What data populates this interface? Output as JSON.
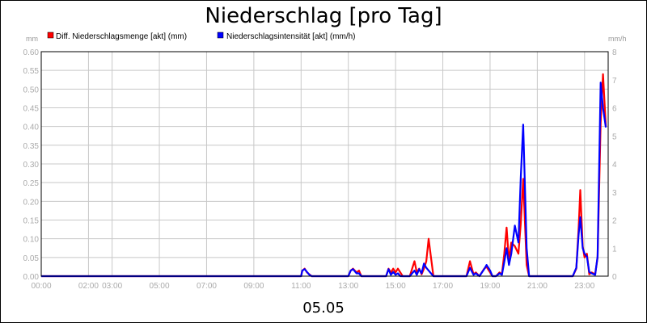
{
  "chart_data": {
    "type": "line",
    "title": "Niederschlag [pro Tag]",
    "date_label": "05.05",
    "y_left": {
      "unit": "mm",
      "min": 0,
      "max": 0.6,
      "ticks": [
        "0.00",
        "0.05",
        "0.10",
        "0.15",
        "0.20",
        "0.25",
        "0.30",
        "0.35",
        "0.40",
        "0.45",
        "0.50",
        "0.55",
        "0.60"
      ]
    },
    "y_right": {
      "unit": "mm/h",
      "min": 0,
      "max": 8,
      "ticks": [
        "0",
        "1",
        "2",
        "3",
        "4",
        "5",
        "6",
        "7",
        "8"
      ]
    },
    "x_range_hours": [
      0,
      24
    ],
    "x_ticks": [
      {
        "label": "00:00",
        "hour": 0
      },
      {
        "label": "02:00",
        "hour": 2
      },
      {
        "label": "03:00",
        "hour": 3
      },
      {
        "label": "05:00",
        "hour": 5
      },
      {
        "label": "07:00",
        "hour": 7
      },
      {
        "label": "09:00",
        "hour": 9
      },
      {
        "label": "11:00",
        "hour": 11
      },
      {
        "label": "13:00",
        "hour": 13
      },
      {
        "label": "15:00",
        "hour": 15
      },
      {
        "label": "17:00",
        "hour": 17
      },
      {
        "label": "19:00",
        "hour": 19
      },
      {
        "label": "21:00",
        "hour": 21
      },
      {
        "label": "23:00",
        "hour": 23
      }
    ],
    "grid": true,
    "legend_position": "top-left",
    "series": [
      {
        "name": "Diff. Niederschlagsmenge [akt] (mm)",
        "color": "#ff0000",
        "axis": "left",
        "points": [
          [
            0,
            0
          ],
          [
            11,
            0
          ],
          [
            11.05,
            0.015
          ],
          [
            11.15,
            0.02
          ],
          [
            11.25,
            0.01
          ],
          [
            11.35,
            0.005
          ],
          [
            11.45,
            0
          ],
          [
            13,
            0
          ],
          [
            13.1,
            0.015
          ],
          [
            13.2,
            0.02
          ],
          [
            13.35,
            0.01
          ],
          [
            13.45,
            0.015
          ],
          [
            13.55,
            0
          ],
          [
            14.6,
            0
          ],
          [
            14.7,
            0.02
          ],
          [
            14.8,
            0.01
          ],
          [
            14.9,
            0.02
          ],
          [
            15,
            0.01
          ],
          [
            15.1,
            0.02
          ],
          [
            15.2,
            0.01
          ],
          [
            15.3,
            0
          ],
          [
            15.6,
            0
          ],
          [
            15.8,
            0.04
          ],
          [
            15.9,
            0.01
          ],
          [
            16,
            0.02
          ],
          [
            16.1,
            0.005
          ],
          [
            16.2,
            0.02
          ],
          [
            16.3,
            0.04
          ],
          [
            16.4,
            0.1
          ],
          [
            16.5,
            0.05
          ],
          [
            16.6,
            0
          ],
          [
            18,
            0
          ],
          [
            18.15,
            0.04
          ],
          [
            18.3,
            0.005
          ],
          [
            18.4,
            0.01
          ],
          [
            18.55,
            0
          ],
          [
            18.75,
            0.02
          ],
          [
            18.85,
            0.025
          ],
          [
            19,
            0.01
          ],
          [
            19.1,
            0
          ],
          [
            19.25,
            0
          ],
          [
            19.4,
            0.01
          ],
          [
            19.5,
            0.005
          ],
          [
            19.6,
            0.06
          ],
          [
            19.7,
            0.13
          ],
          [
            19.8,
            0.04
          ],
          [
            19.9,
            0.09
          ],
          [
            20.05,
            0.08
          ],
          [
            20.2,
            0.06
          ],
          [
            20.3,
            0.14
          ],
          [
            20.4,
            0.26
          ],
          [
            20.55,
            0.03
          ],
          [
            20.65,
            0
          ],
          [
            22.5,
            0
          ],
          [
            22.65,
            0.02
          ],
          [
            22.75,
            0.13
          ],
          [
            22.82,
            0.23
          ],
          [
            22.92,
            0.08
          ],
          [
            23,
            0.05
          ],
          [
            23.1,
            0.06
          ],
          [
            23.2,
            0.005
          ],
          [
            23.3,
            0.01
          ],
          [
            23.45,
            0.005
          ],
          [
            23.55,
            0.05
          ],
          [
            23.68,
            0.41
          ],
          [
            23.78,
            0.54
          ],
          [
            23.9,
            0.4
          ]
        ]
      },
      {
        "name": "Niederschlagsintensität [akt] (mm/h)",
        "color": "#0000ff",
        "axis": "right",
        "points": [
          [
            0,
            0
          ],
          [
            11,
            0
          ],
          [
            11.05,
            0.2
          ],
          [
            11.15,
            0.25
          ],
          [
            11.25,
            0.15
          ],
          [
            11.35,
            0.05
          ],
          [
            11.45,
            0
          ],
          [
            13,
            0
          ],
          [
            13.1,
            0.2
          ],
          [
            13.2,
            0.25
          ],
          [
            13.35,
            0.1
          ],
          [
            13.45,
            0.1
          ],
          [
            13.55,
            0
          ],
          [
            14.6,
            0
          ],
          [
            14.7,
            0.25
          ],
          [
            14.8,
            0.05
          ],
          [
            14.9,
            0.15
          ],
          [
            15,
            0.05
          ],
          [
            15.1,
            0.1
          ],
          [
            15.2,
            0
          ],
          [
            15.3,
            0
          ],
          [
            15.6,
            0
          ],
          [
            15.8,
            0.2
          ],
          [
            15.9,
            0.05
          ],
          [
            16,
            0.25
          ],
          [
            16.1,
            0.1
          ],
          [
            16.2,
            0.45
          ],
          [
            16.3,
            0.3
          ],
          [
            16.4,
            0.2
          ],
          [
            16.5,
            0.1
          ],
          [
            16.6,
            0
          ],
          [
            18,
            0
          ],
          [
            18.15,
            0.3
          ],
          [
            18.3,
            0.05
          ],
          [
            18.4,
            0.1
          ],
          [
            18.55,
            0
          ],
          [
            18.75,
            0.25
          ],
          [
            18.85,
            0.4
          ],
          [
            19,
            0.2
          ],
          [
            19.1,
            0
          ],
          [
            19.25,
            0
          ],
          [
            19.4,
            0.1
          ],
          [
            19.5,
            0.05
          ],
          [
            19.6,
            0.5
          ],
          [
            19.7,
            1.0
          ],
          [
            19.8,
            0.4
          ],
          [
            19.9,
            0.8
          ],
          [
            20.05,
            1.8
          ],
          [
            20.2,
            1.2
          ],
          [
            20.3,
            3.5
          ],
          [
            20.4,
            5.4
          ],
          [
            20.55,
            1.0
          ],
          [
            20.65,
            0
          ],
          [
            22.5,
            0
          ],
          [
            22.65,
            0.3
          ],
          [
            22.75,
            1.5
          ],
          [
            22.82,
            2.1
          ],
          [
            22.92,
            1.0
          ],
          [
            23,
            0.8
          ],
          [
            23.1,
            0.7
          ],
          [
            23.2,
            0.15
          ],
          [
            23.3,
            0.1
          ],
          [
            23.45,
            0.05
          ],
          [
            23.55,
            0.7
          ],
          [
            23.68,
            6.9
          ],
          [
            23.78,
            6.0
          ],
          [
            23.9,
            5.3
          ]
        ]
      }
    ]
  }
}
